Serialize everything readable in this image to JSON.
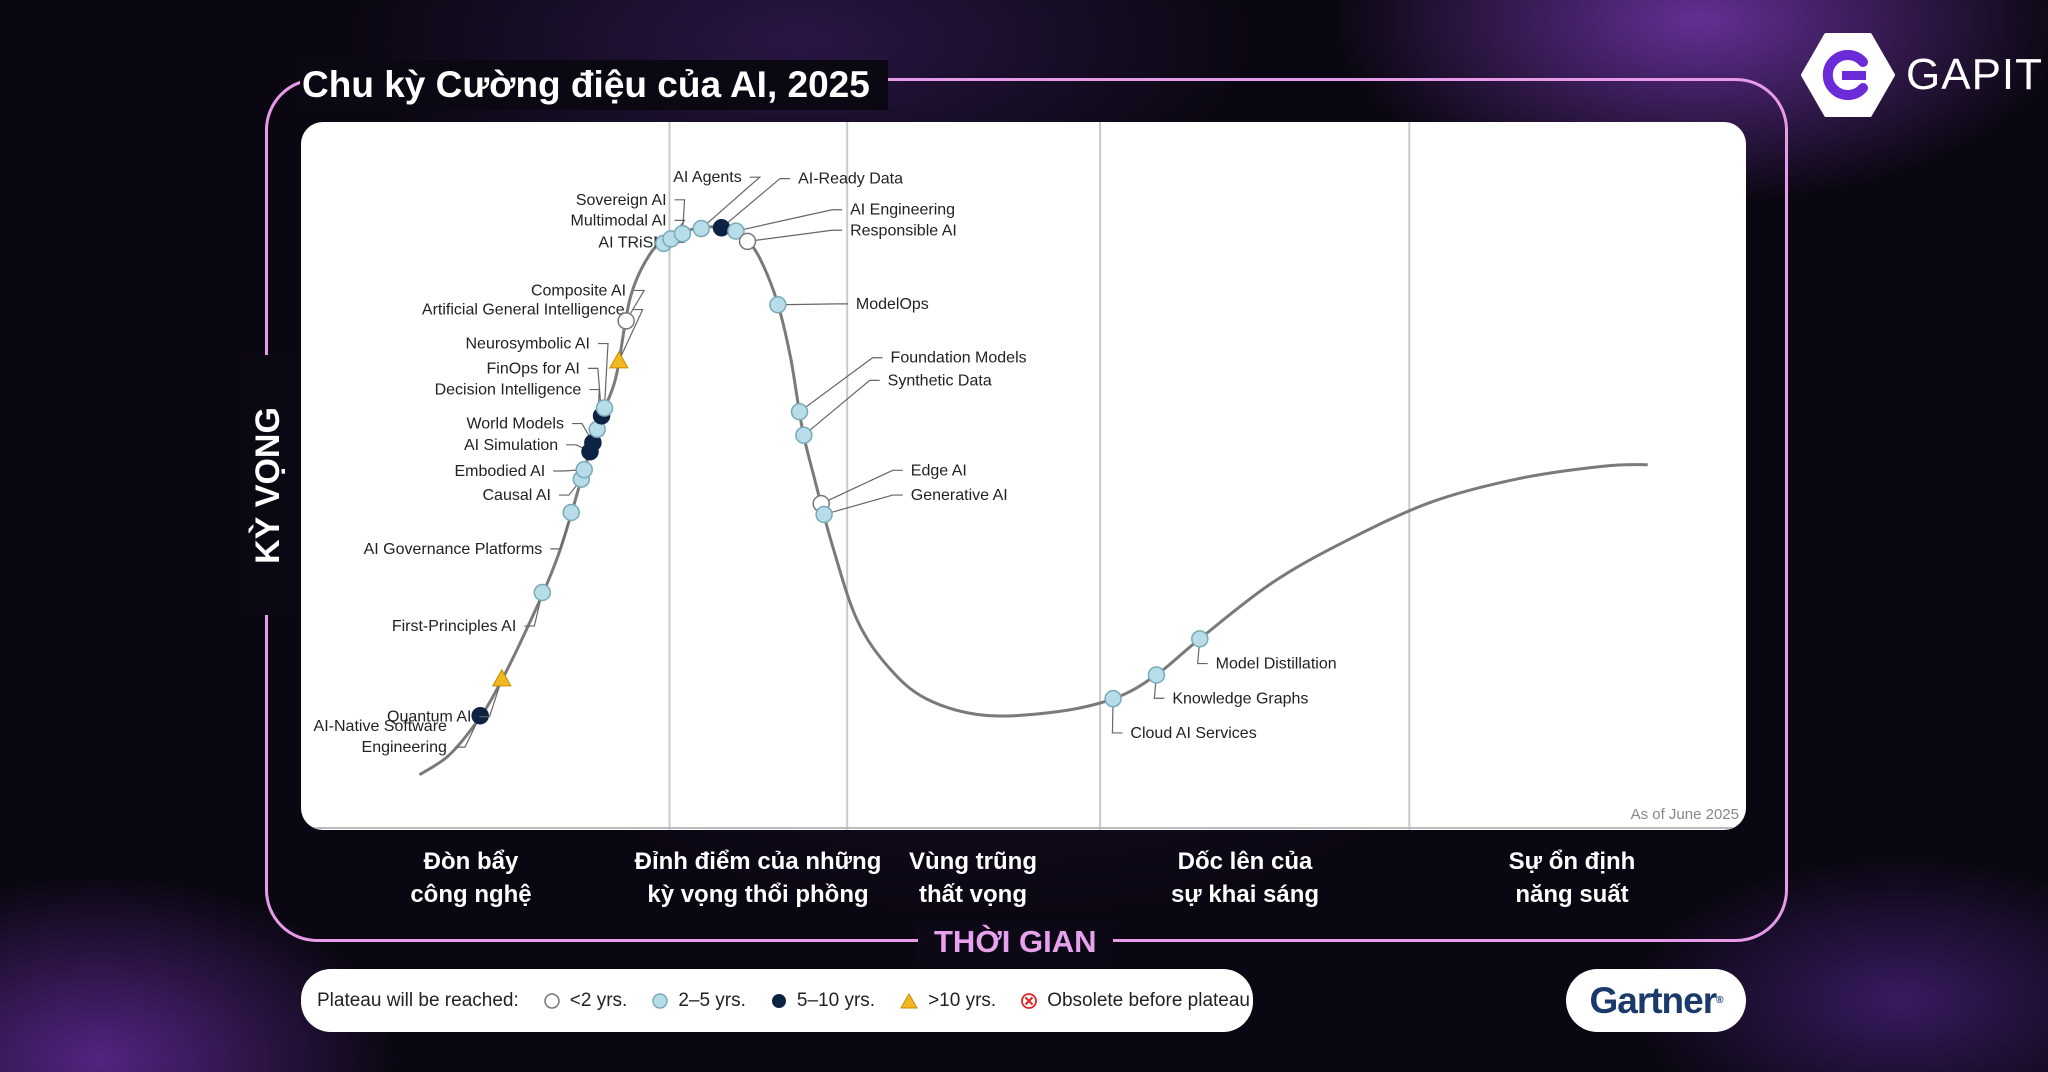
{
  "header": {
    "title": "Chu kỳ Cường điệu của AI, 2025"
  },
  "brand": {
    "logo_text": "GAPIT"
  },
  "axes": {
    "y_label": "KỲ VỌNG",
    "x_label": "THỜI GIAN"
  },
  "chart": {
    "as_of": "As of June 2025",
    "phases": [
      {
        "line1": "Đòn bẩy",
        "line2": "công nghệ"
      },
      {
        "line1": "Đỉnh điểm của những",
        "line2": "kỳ vọng thổi phồng"
      },
      {
        "line1": "Vùng trũng",
        "line2": "thất vọng"
      },
      {
        "line1": "Dốc lên của",
        "line2": "sự khai sáng"
      },
      {
        "line1": "Sự ổn định",
        "line2": "năng suất"
      }
    ],
    "phase_boundaries": [
      0.255,
      0.378,
      0.553,
      0.767
    ],
    "marker_colors": {
      "lt2": "#ffffff",
      "2to5": "#b7dde8",
      "5to10": "#0d2344",
      "gt10": "#f2b822",
      "obsolete": "#e02424"
    },
    "technologies": [
      {
        "name": "AI-Native Software|Engineering",
        "t": 0.124,
        "m": "5to10"
      },
      {
        "name": "Quantum AI",
        "t": 0.139,
        "m": "gt10"
      },
      {
        "name": "First-Principles AI",
        "t": 0.167,
        "m": "2to5"
      },
      {
        "name": "AI Governance Platforms",
        "t": 0.187,
        "m": "2to5"
      },
      {
        "name": "Causal AI",
        "t": 0.194,
        "m": "2to5"
      },
      {
        "name": "Embodied AI",
        "t": 0.196,
        "m": "2to5"
      },
      {
        "name": "AI Simulation",
        "t": 0.2,
        "m": "5to10"
      },
      {
        "name": "World Models",
        "t": 0.202,
        "m": "5to10"
      },
      {
        "name": "Decision Intelligence",
        "t": 0.205,
        "m": "2to5"
      },
      {
        "name": "FinOps for AI",
        "t": 0.208,
        "m": "5to10"
      },
      {
        "name": "Neurosymbolic AI",
        "t": 0.21,
        "m": "2to5"
      },
      {
        "name": "Artificial General Intelligence",
        "t": 0.22,
        "m": "gt10"
      },
      {
        "name": "Composite AI",
        "t": 0.225,
        "m": "lt2"
      },
      {
        "name": "AI TRiSM",
        "t": 0.251,
        "m": "2to5"
      },
      {
        "name": "Multimodal AI",
        "t": 0.256,
        "m": "2to5"
      },
      {
        "name": "Sovereign AI",
        "t": 0.264,
        "m": "2to5"
      },
      {
        "name": "AI Agents",
        "t": 0.277,
        "m": "2to5"
      },
      {
        "name": "AI-Ready Data",
        "t": 0.291,
        "m": "5to10"
      },
      {
        "name": "AI Engineering",
        "t": 0.301,
        "m": "2to5"
      },
      {
        "name": "Responsible AI",
        "t": 0.309,
        "m": "lt2"
      },
      {
        "name": "ModelOps",
        "t": 0.33,
        "m": "2to5"
      },
      {
        "name": "Foundation Models",
        "t": 0.345,
        "m": "2to5"
      },
      {
        "name": "Synthetic Data",
        "t": 0.348,
        "m": "2to5"
      },
      {
        "name": "Edge AI",
        "t": 0.36,
        "m": "lt2"
      },
      {
        "name": "Generative AI",
        "t": 0.362,
        "m": "2to5"
      },
      {
        "name": "Cloud AI Services",
        "t": 0.562,
        "m": "2to5"
      },
      {
        "name": "Knowledge Graphs",
        "t": 0.592,
        "m": "2to5"
      },
      {
        "name": "Model Distillation",
        "t": 0.622,
        "m": "2to5"
      }
    ]
  },
  "legend": {
    "title": "Plateau will be reached:",
    "items": [
      {
        "label": "<2 yrs.",
        "key": "lt2"
      },
      {
        "label": "2–5 yrs.",
        "key": "2to5"
      },
      {
        "label": "5–10 yrs.",
        "key": "5to10"
      },
      {
        "label": ">10 yrs.",
        "key": "gt10"
      },
      {
        "label": "Obsolete before plateau",
        "key": "obsolete"
      }
    ]
  },
  "footer": {
    "brand": "Gartner"
  }
}
